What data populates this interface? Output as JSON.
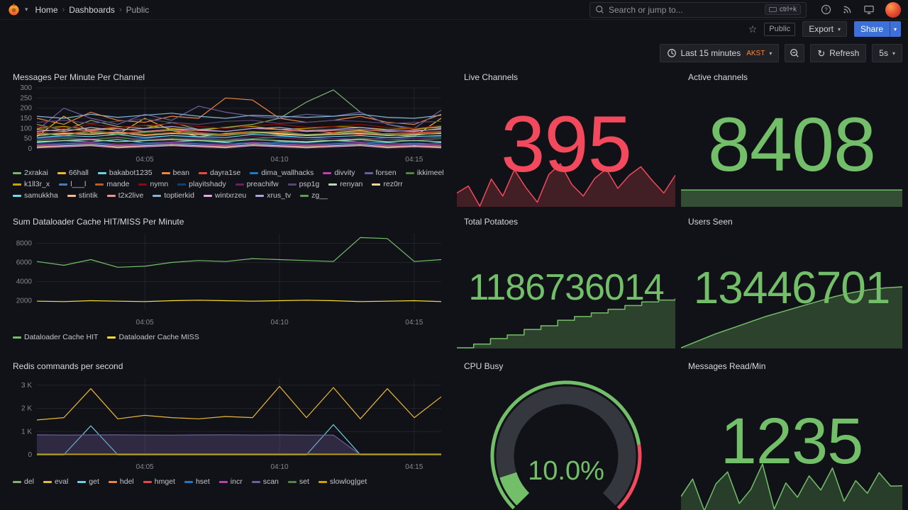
{
  "nav": {
    "breadcrumb": [
      {
        "label": "Home"
      },
      {
        "label": "Dashboards"
      },
      {
        "label": "Public"
      }
    ],
    "search": {
      "placeholder": "Search or jump to...",
      "shortcut": "ctrl+k"
    }
  },
  "toolbar": {
    "tag": "Public",
    "export": "Export",
    "share": "Share"
  },
  "timebar": {
    "range": "Last 15 minutes",
    "tz": "AKST",
    "refresh": "Refresh",
    "interval": "5s"
  },
  "colors": {
    "red": "#F2495C",
    "green": "#73BF69",
    "yellow": "#FADE2A"
  },
  "panels": {
    "messages": {
      "title": "Messages Per Minute Per Channel"
    },
    "dataloader": {
      "title": "Sum Dataloader Cache HIT/MISS Per Minute"
    },
    "redis": {
      "title": "Redis commands per second"
    },
    "live_channels": {
      "title": "Live Channels",
      "value": "395",
      "color": "#F2495C",
      "spark": [
        372,
        381,
        355,
        390,
        368,
        402,
        379,
        360,
        396,
        410,
        383,
        368,
        391,
        403,
        378,
        395,
        406,
        388,
        372,
        395
      ]
    },
    "active_channels": {
      "title": "Active channels",
      "value": "8408",
      "color": "#73BF69",
      "spark": [
        8408,
        8408,
        8408,
        8408,
        8408,
        8408,
        8408,
        8408
      ]
    },
    "total_potatoes": {
      "title": "Total Potatoes",
      "value": "1186736014",
      "color": "#73BF69",
      "spark": [
        1160,
        1162,
        1165,
        1167,
        1170,
        1172,
        1175,
        1177,
        1179,
        1181,
        1183,
        1185,
        1186,
        1187
      ]
    },
    "users_seen": {
      "title": "Users Seen",
      "value": "13446701",
      "color": "#73BF69",
      "spark": [
        13385,
        13392,
        13399,
        13405,
        13411,
        13417,
        13422,
        13427,
        13432,
        13437,
        13441,
        13444,
        13446,
        13447
      ]
    },
    "cpu_busy": {
      "title": "CPU Busy",
      "display": "10.0%",
      "value": 10,
      "min": 0,
      "max": 100,
      "color": "#73BF69",
      "thresholds": [
        {
          "to": 80,
          "color": "#73BF69"
        },
        {
          "to": 100,
          "color": "#F2495C"
        }
      ]
    },
    "messages_read": {
      "title": "Messages Read/Min",
      "value": "1235",
      "color": "#73BF69",
      "spark": [
        1100,
        1320,
        920,
        1260,
        1410,
        1010,
        1190,
        1510,
        940,
        1270,
        1090,
        1360,
        1180,
        1460,
        1040,
        1300,
        1140,
        1400,
        1230,
        1235
      ]
    }
  },
  "chart_data": [
    {
      "type": "line",
      "title": "Messages Per Minute Per Channel",
      "ylim": [
        0,
        300
      ],
      "yticks": [
        {
          "v": 0,
          "l": "0"
        },
        {
          "v": 50,
          "l": "50"
        },
        {
          "v": 100,
          "l": "100"
        },
        {
          "v": 150,
          "l": "150"
        },
        {
          "v": 200,
          "l": "200"
        },
        {
          "v": 250,
          "l": "250"
        },
        {
          "v": 300,
          "l": "300"
        }
      ],
      "xticks": [
        {
          "l": "04:05",
          "f": 0.267
        },
        {
          "l": "04:10",
          "f": 0.6
        },
        {
          "l": "04:15",
          "f": 0.933
        }
      ],
      "series": [
        {
          "name": "2xrakai",
          "color": "#7EB26D",
          "values": [
            120,
            90,
            140,
            110,
            100,
            130,
            95,
            105,
            120,
            150,
            230,
            290,
            180,
            120,
            95,
            110
          ]
        },
        {
          "name": "66hall",
          "color": "#EAB839",
          "values": [
            60,
            160,
            80,
            70,
            150,
            90,
            60,
            75,
            85,
            70,
            65,
            80,
            90,
            70,
            60,
            150
          ]
        },
        {
          "name": "bakabot1235",
          "color": "#6ED0E0",
          "values": [
            30,
            40,
            35,
            45,
            30,
            35,
            40,
            30,
            25,
            35,
            30,
            40,
            35,
            30,
            25,
            30
          ]
        },
        {
          "name": "bean",
          "color": "#EF843C",
          "values": [
            150,
            120,
            180,
            140,
            130,
            160,
            150,
            250,
            240,
            150,
            130,
            140,
            160,
            130,
            120,
            170
          ]
        },
        {
          "name": "dayra1se",
          "color": "#E24D42",
          "values": [
            80,
            70,
            90,
            75,
            85,
            95,
            80,
            70,
            75,
            85,
            90,
            80,
            70,
            75,
            80,
            85
          ]
        },
        {
          "name": "dima_wallhacks",
          "color": "#1F78C1",
          "values": [
            50,
            60,
            45,
            55,
            50,
            65,
            55,
            45,
            50,
            60,
            55,
            50,
            45,
            55,
            50,
            60
          ]
        },
        {
          "name": "divvity",
          "color": "#BA43A9",
          "values": [
            20,
            25,
            30,
            20,
            25,
            30,
            25,
            20,
            30,
            25,
            20,
            25,
            30,
            20,
            25,
            20
          ]
        },
        {
          "name": "forsen",
          "color": "#705DA0",
          "values": [
            90,
            200,
            150,
            120,
            170,
            140,
            210,
            180,
            160,
            150,
            170,
            160,
            180,
            120,
            100,
            190
          ]
        },
        {
          "name": "ikkimeel",
          "color": "#508642",
          "values": [
            40,
            50,
            45,
            55,
            40,
            50,
            45,
            40,
            50,
            55,
            45,
            40,
            50,
            45,
            40,
            50
          ]
        },
        {
          "name": "k1ll3r_x",
          "color": "#CCA300",
          "values": [
            100,
            110,
            95,
            105,
            115,
            100,
            90,
            105,
            110,
            95,
            100,
            110,
            105,
            95,
            100,
            105
          ]
        },
        {
          "name": "l___l",
          "color": "#447EBC",
          "values": [
            15,
            20,
            25,
            15,
            20,
            25,
            20,
            15,
            25,
            20,
            15,
            20,
            25,
            15,
            20,
            15
          ]
        },
        {
          "name": "mande",
          "color": "#C15C17",
          "values": [
            70,
            80,
            75,
            85,
            70,
            80,
            75,
            70,
            85,
            80,
            70,
            75,
            80,
            70,
            75,
            80
          ]
        },
        {
          "name": "nymn",
          "color": "#890F02",
          "values": [
            110,
            100,
            120,
            105,
            115,
            125,
            110,
            100,
            115,
            120,
            105,
            110,
            120,
            105,
            100,
            115
          ]
        },
        {
          "name": "playitshady",
          "color": "#0A437C",
          "values": [
            25,
            30,
            35,
            25,
            30,
            35,
            30,
            25,
            35,
            30,
            25,
            30,
            35,
            25,
            30,
            25
          ]
        },
        {
          "name": "preachifw",
          "color": "#6D1F62",
          "values": [
            45,
            55,
            50,
            60,
            45,
            55,
            50,
            45,
            60,
            55,
            45,
            50,
            55,
            45,
            50,
            55
          ]
        },
        {
          "name": "psp1g",
          "color": "#584477",
          "values": [
            130,
            140,
            125,
            135,
            145,
            130,
            120,
            135,
            140,
            125,
            130,
            140,
            135,
            125,
            130,
            135
          ]
        },
        {
          "name": "renyan",
          "color": "#B7DBAB",
          "values": [
            35,
            40,
            45,
            35,
            40,
            45,
            40,
            35,
            45,
            40,
            35,
            40,
            45,
            35,
            40,
            35
          ]
        },
        {
          "name": "rez0rr",
          "color": "#F4D598",
          "values": [
            65,
            75,
            70,
            80,
            65,
            75,
            70,
            65,
            80,
            75,
            65,
            70,
            75,
            65,
            70,
            75
          ]
        },
        {
          "name": "samukkha",
          "color": "#70DBED",
          "values": [
            55,
            65,
            60,
            70,
            55,
            65,
            60,
            55,
            70,
            65,
            55,
            60,
            65,
            55,
            60,
            65
          ]
        },
        {
          "name": "stintik",
          "color": "#F9BA8F",
          "values": [
            10,
            15,
            20,
            10,
            15,
            20,
            15,
            10,
            20,
            15,
            10,
            15,
            20,
            10,
            15,
            10
          ]
        },
        {
          "name": "t2x2live",
          "color": "#F29191",
          "values": [
            85,
            95,
            90,
            100,
            85,
            95,
            90,
            85,
            100,
            95,
            85,
            90,
            95,
            85,
            90,
            95
          ]
        },
        {
          "name": "toptierkid",
          "color": "#82B5D8",
          "values": [
            160,
            150,
            170,
            155,
            165,
            175,
            160,
            150,
            165,
            160,
            155,
            160,
            170,
            155,
            150,
            165
          ]
        },
        {
          "name": "wintxrzeu",
          "color": "#E5A8E2",
          "values": [
            5,
            10,
            15,
            5,
            10,
            15,
            10,
            5,
            15,
            10,
            5,
            10,
            15,
            5,
            10,
            5
          ]
        },
        {
          "name": "xrus_tv",
          "color": "#AEA2E0",
          "values": [
            95,
            85,
            105,
            90,
            100,
            110,
            95,
            85,
            100,
            105,
            90,
            95,
            105,
            90,
            85,
            100
          ]
        },
        {
          "name": "zg__",
          "color": "#629E51",
          "values": [
            75,
            65,
            85,
            70,
            80,
            90,
            75,
            65,
            80,
            85,
            70,
            75,
            85,
            70,
            65,
            80
          ]
        }
      ]
    },
    {
      "type": "line",
      "title": "Sum Dataloader Cache HIT/MISS Per Minute",
      "ylim": [
        1000,
        9000
      ],
      "yticks": [
        {
          "v": 2000,
          "l": "2000"
        },
        {
          "v": 4000,
          "l": "4000"
        },
        {
          "v": 6000,
          "l": "6000"
        },
        {
          "v": 8000,
          "l": "8000"
        }
      ],
      "xticks": [
        {
          "l": "04:05",
          "f": 0.267
        },
        {
          "l": "04:10",
          "f": 0.6
        },
        {
          "l": "04:15",
          "f": 0.933
        }
      ],
      "series": [
        {
          "name": "Dataloader Cache HIT",
          "color": "#73BF69",
          "values": [
            6100,
            5700,
            6300,
            5500,
            5600,
            6000,
            6200,
            6100,
            6400,
            6300,
            6200,
            6100,
            8600,
            8500,
            6100,
            6300
          ]
        },
        {
          "name": "Dataloader Cache MISS",
          "color": "#FADE2A",
          "values": [
            1950,
            1900,
            2000,
            1950,
            1900,
            2000,
            2050,
            2000,
            1950,
            2000,
            2050,
            2000,
            1900,
            1950,
            2000,
            1900
          ]
        }
      ]
    },
    {
      "type": "line",
      "title": "Redis commands per second",
      "ylim": [
        0,
        3300
      ],
      "yticks": [
        {
          "v": 0,
          "l": "0"
        },
        {
          "v": 1000,
          "l": "1 K"
        },
        {
          "v": 2000,
          "l": "2 K"
        },
        {
          "v": 3000,
          "l": "3 K"
        }
      ],
      "xticks": [
        {
          "l": "04:05",
          "f": 0.267
        },
        {
          "l": "04:10",
          "f": 0.6
        },
        {
          "l": "04:15",
          "f": 0.933
        }
      ],
      "series": [
        {
          "name": "del",
          "color": "#7EB26D",
          "values": [
            30,
            30,
            30,
            30,
            30,
            30,
            30,
            30,
            30,
            30,
            30,
            30,
            30,
            30,
            30,
            30
          ]
        },
        {
          "name": "eval",
          "color": "#EAB839",
          "values": [
            1500,
            1600,
            2850,
            1550,
            1700,
            1600,
            1550,
            1650,
            1600,
            2950,
            1600,
            2900,
            1550,
            2850,
            1600,
            2500
          ]
        },
        {
          "name": "get",
          "color": "#6ED0E0",
          "values": [
            0,
            0,
            1250,
            0,
            0,
            0,
            0,
            0,
            0,
            0,
            0,
            1300,
            0,
            0,
            0,
            0
          ]
        },
        {
          "name": "hdel",
          "color": "#EF843C",
          "values": [
            20,
            20,
            20,
            20,
            20,
            20,
            20,
            20,
            20,
            20,
            20,
            20,
            20,
            20,
            20,
            20
          ]
        },
        {
          "name": "hmget",
          "color": "#E24D42",
          "values": [
            40,
            40,
            40,
            40,
            40,
            40,
            40,
            40,
            40,
            40,
            40,
            40,
            40,
            40,
            40,
            40
          ]
        },
        {
          "name": "hset",
          "color": "#1F78C1",
          "values": [
            25,
            25,
            25,
            25,
            25,
            25,
            25,
            25,
            25,
            25,
            25,
            25,
            25,
            25,
            25,
            25
          ]
        },
        {
          "name": "incr",
          "color": "#BA43A9",
          "values": [
            15,
            15,
            15,
            15,
            15,
            15,
            15,
            15,
            15,
            15,
            15,
            15,
            15,
            15,
            15,
            15
          ]
        },
        {
          "name": "scan",
          "color": "#705DA0",
          "fill": true,
          "values": [
            860,
            850,
            855,
            860,
            850,
            845,
            855,
            860,
            850,
            855,
            845,
            850,
            0,
            0,
            0,
            0
          ]
        },
        {
          "name": "set",
          "color": "#508642",
          "values": [
            35,
            35,
            35,
            35,
            35,
            35,
            35,
            35,
            35,
            35,
            35,
            35,
            35,
            35,
            35,
            35
          ]
        },
        {
          "name": "slowlog|get",
          "color": "#CCA300",
          "values": [
            10,
            10,
            10,
            10,
            10,
            10,
            10,
            10,
            10,
            10,
            10,
            10,
            10,
            10,
            10,
            10
          ]
        }
      ]
    }
  ]
}
